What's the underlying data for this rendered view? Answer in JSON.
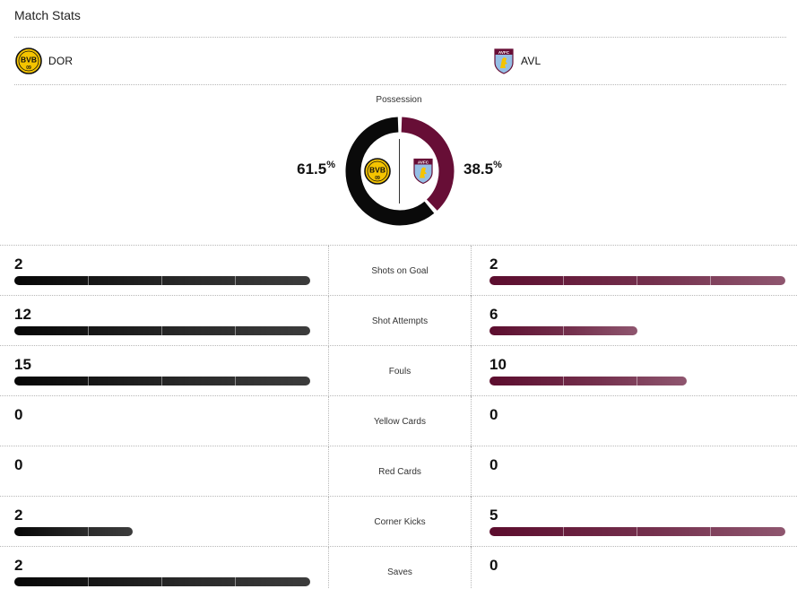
{
  "header": {
    "title": "Match Stats"
  },
  "teams": {
    "home": {
      "abbr": "DOR",
      "crest_text": "BVB",
      "crest_sub": "09",
      "color": "#111111",
      "crest_color": "#f5c400"
    },
    "away": {
      "abbr": "AVL",
      "crest_text": "AVFC",
      "color": "#670e36",
      "crest_color": "#95bfe5"
    }
  },
  "possession": {
    "label": "Possession",
    "home_value": "61.5",
    "away_value": "38.5",
    "unit": "%",
    "home_fraction": 0.615,
    "away_fraction": 0.385
  },
  "stats": [
    {
      "name": "Shots on Goal",
      "home": "2",
      "away": "2",
      "home_fill": 1.0,
      "away_fill": 1.0
    },
    {
      "name": "Shot Attempts",
      "home": "12",
      "away": "6",
      "home_fill": 1.0,
      "away_fill": 0.5
    },
    {
      "name": "Fouls",
      "home": "15",
      "away": "10",
      "home_fill": 1.0,
      "away_fill": 0.667
    },
    {
      "name": "Yellow Cards",
      "home": "0",
      "away": "0",
      "home_fill": 0,
      "away_fill": 0
    },
    {
      "name": "Red Cards",
      "home": "0",
      "away": "0",
      "home_fill": 0,
      "away_fill": 0
    },
    {
      "name": "Corner Kicks",
      "home": "2",
      "away": "5",
      "home_fill": 0.4,
      "away_fill": 1.0
    },
    {
      "name": "Saves",
      "home": "2",
      "away": "0",
      "home_fill": 1.0,
      "away_fill": 0
    }
  ]
}
